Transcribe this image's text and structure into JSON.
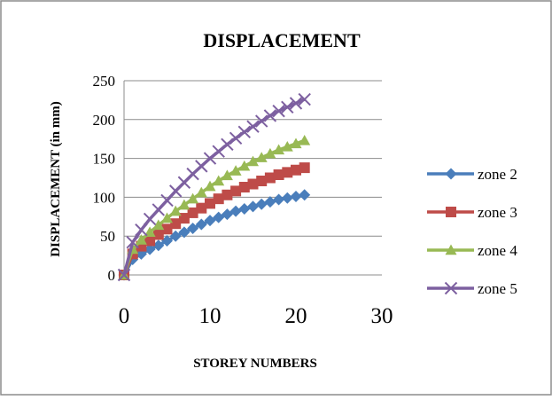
{
  "chart_data": {
    "type": "line",
    "title": "DISPLACEMENT",
    "xlabel": "STOREY NUMBERS",
    "ylabel": "DISPLACEMENT (in mm)",
    "xlim": [
      0,
      30
    ],
    "ylim": [
      0,
      250
    ],
    "xticks": [
      0,
      10,
      20,
      30
    ],
    "yticks": [
      0,
      50,
      100,
      150,
      200,
      250
    ],
    "grid": "horizontal",
    "legend_position": "right",
    "x": [
      0,
      1,
      2,
      3,
      4,
      5,
      6,
      7,
      8,
      9,
      10,
      11,
      12,
      13,
      14,
      15,
      16,
      17,
      18,
      19,
      20,
      21
    ],
    "series": [
      {
        "name": "zone 2",
        "color": "#4a7ebb",
        "marker": "diamond",
        "values": [
          0,
          20,
          27,
          33,
          38,
          44,
          50,
          55,
          60,
          65,
          70,
          74,
          78,
          82,
          85,
          88,
          91,
          94,
          97,
          99,
          101,
          103
        ]
      },
      {
        "name": "zone 3",
        "color": "#be4b48",
        "marker": "square",
        "values": [
          0,
          27,
          37,
          44,
          52,
          59,
          66,
          73,
          80,
          86,
          92,
          98,
          103,
          108,
          113,
          117,
          121,
          125,
          129,
          132,
          135,
          138
        ]
      },
      {
        "name": "zone 4",
        "color": "#98b954",
        "marker": "triangle",
        "values": [
          0,
          33,
          45,
          55,
          64,
          73,
          82,
          90,
          98,
          106,
          114,
          121,
          128,
          134,
          140,
          146,
          151,
          156,
          161,
          165,
          169,
          173
        ]
      },
      {
        "name": "zone 5",
        "color": "#7d60a0",
        "marker": "x",
        "values": [
          0,
          42,
          58,
          72,
          84,
          96,
          108,
          119,
          130,
          140,
          150,
          159,
          168,
          176,
          184,
          191,
          198,
          205,
          211,
          216,
          221,
          226
        ]
      }
    ]
  }
}
